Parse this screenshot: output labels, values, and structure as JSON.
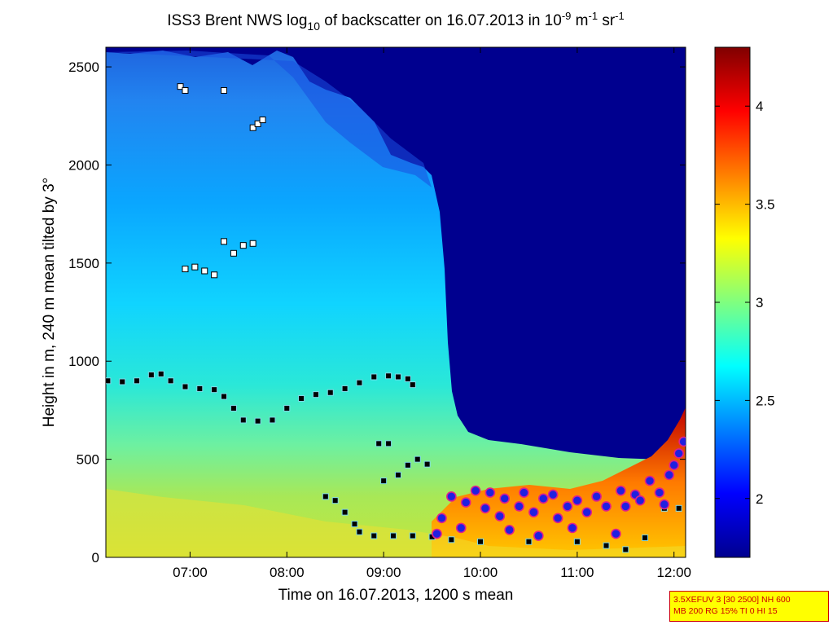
{
  "chart_data": {
    "type": "heatmap",
    "title": {
      "part1": "ISS3 Brent NWS log",
      "sub": "10",
      "part2": " of backscatter on 16.07.2013 in 10",
      "sup1": "-9",
      "part3": " m",
      "sup2": "-1",
      "part4": " sr",
      "sup3": "-1"
    },
    "xlabel": "Time on 16.07.2013, 1200 s mean",
    "ylabel": "Height in m, 240 m mean tilted by 3°",
    "xlim_hours": [
      6.13,
      12.12
    ],
    "ylim": [
      0,
      2600
    ],
    "x_ticks": [
      {
        "value": 7,
        "label": "07:00"
      },
      {
        "value": 8,
        "label": "08:00"
      },
      {
        "value": 9,
        "label": "09:00"
      },
      {
        "value": 10,
        "label": "10:00"
      },
      {
        "value": 11,
        "label": "11:00"
      },
      {
        "value": 12,
        "label": "12:00"
      }
    ],
    "y_ticks": [
      0,
      500,
      1000,
      1500,
      2000,
      2500
    ],
    "colorbar": {
      "range": [
        1.7,
        4.3
      ],
      "ticks": [
        {
          "value": 2,
          "label": "2"
        },
        {
          "value": 2.5,
          "label": "2.5"
        },
        {
          "value": 3,
          "label": "3"
        },
        {
          "value": 3.5,
          "label": "3.5"
        },
        {
          "value": 4,
          "label": "4"
        }
      ]
    },
    "series": [
      {
        "marker": "square",
        "points": [
          [
            6.15,
            900
          ],
          [
            6.3,
            895
          ],
          [
            6.45,
            900
          ],
          [
            6.6,
            930
          ],
          [
            6.7,
            935
          ],
          [
            6.8,
            900
          ],
          [
            6.95,
            870
          ],
          [
            7.1,
            860
          ],
          [
            7.25,
            855
          ],
          [
            7.35,
            820
          ],
          [
            7.45,
            760
          ],
          [
            7.55,
            700
          ],
          [
            7.7,
            695
          ],
          [
            7.85,
            700
          ],
          [
            8.0,
            760
          ],
          [
            8.15,
            810
          ],
          [
            8.3,
            830
          ],
          [
            8.45,
            840
          ],
          [
            8.6,
            860
          ],
          [
            8.75,
            890
          ],
          [
            8.9,
            920
          ],
          [
            9.05,
            925
          ],
          [
            9.15,
            920
          ],
          [
            9.25,
            910
          ],
          [
            9.3,
            880
          ],
          [
            8.4,
            310
          ],
          [
            8.5,
            290
          ],
          [
            8.6,
            230
          ],
          [
            8.7,
            170
          ],
          [
            8.75,
            130
          ],
          [
            8.9,
            110
          ],
          [
            9.1,
            110
          ],
          [
            9.3,
            110
          ],
          [
            9.5,
            105
          ],
          [
            9.7,
            90
          ],
          [
            10.0,
            80
          ],
          [
            10.5,
            80
          ],
          [
            11.0,
            80
          ],
          [
            11.3,
            60
          ],
          [
            11.5,
            40
          ],
          [
            11.7,
            100
          ],
          [
            11.9,
            250
          ],
          [
            12.05,
            250
          ],
          [
            8.95,
            580
          ],
          [
            9.05,
            580
          ],
          [
            9.0,
            390
          ],
          [
            9.15,
            420
          ],
          [
            9.25,
            470
          ],
          [
            9.35,
            500
          ],
          [
            9.45,
            475
          ]
        ]
      },
      {
        "marker": "square",
        "points": [
          [
            6.9,
            2400
          ],
          [
            6.95,
            2380
          ],
          [
            7.35,
            2380
          ],
          [
            7.65,
            2190
          ],
          [
            7.7,
            2210
          ],
          [
            7.75,
            2230
          ],
          [
            6.95,
            1470
          ],
          [
            7.05,
            1480
          ],
          [
            7.15,
            1460
          ],
          [
            7.25,
            1440
          ],
          [
            7.35,
            1610
          ],
          [
            7.45,
            1550
          ],
          [
            7.55,
            1590
          ],
          [
            7.65,
            1600
          ]
        ]
      },
      {
        "marker": "circle",
        "points": [
          [
            9.55,
            120
          ],
          [
            9.6,
            200
          ],
          [
            9.7,
            310
          ],
          [
            9.8,
            150
          ],
          [
            9.85,
            280
          ],
          [
            9.95,
            340
          ],
          [
            10.05,
            250
          ],
          [
            10.1,
            330
          ],
          [
            10.2,
            210
          ],
          [
            10.25,
            300
          ],
          [
            10.3,
            140
          ],
          [
            10.4,
            260
          ],
          [
            10.45,
            330
          ],
          [
            10.55,
            230
          ],
          [
            10.6,
            110
          ],
          [
            10.65,
            300
          ],
          [
            10.75,
            320
          ],
          [
            10.8,
            200
          ],
          [
            10.9,
            260
          ],
          [
            10.95,
            150
          ],
          [
            11.0,
            290
          ],
          [
            11.1,
            230
          ],
          [
            11.2,
            310
          ],
          [
            11.3,
            260
          ],
          [
            11.4,
            120
          ],
          [
            11.45,
            340
          ],
          [
            11.5,
            260
          ],
          [
            11.6,
            320
          ],
          [
            11.65,
            290
          ],
          [
            11.75,
            390
          ],
          [
            11.85,
            330
          ],
          [
            11.9,
            270
          ],
          [
            11.95,
            420
          ],
          [
            12.0,
            470
          ],
          [
            12.05,
            530
          ],
          [
            12.1,
            590
          ]
        ]
      }
    ]
  },
  "info_box": {
    "line1": "3.5XEFUV 3 [30 2500] NH 600",
    "line2": "MB 200 RG 15% TI 0 HI 15"
  },
  "colors": {
    "background_low": "#00008f",
    "background_mid": "#00c8ff",
    "background_high": "#800000"
  }
}
